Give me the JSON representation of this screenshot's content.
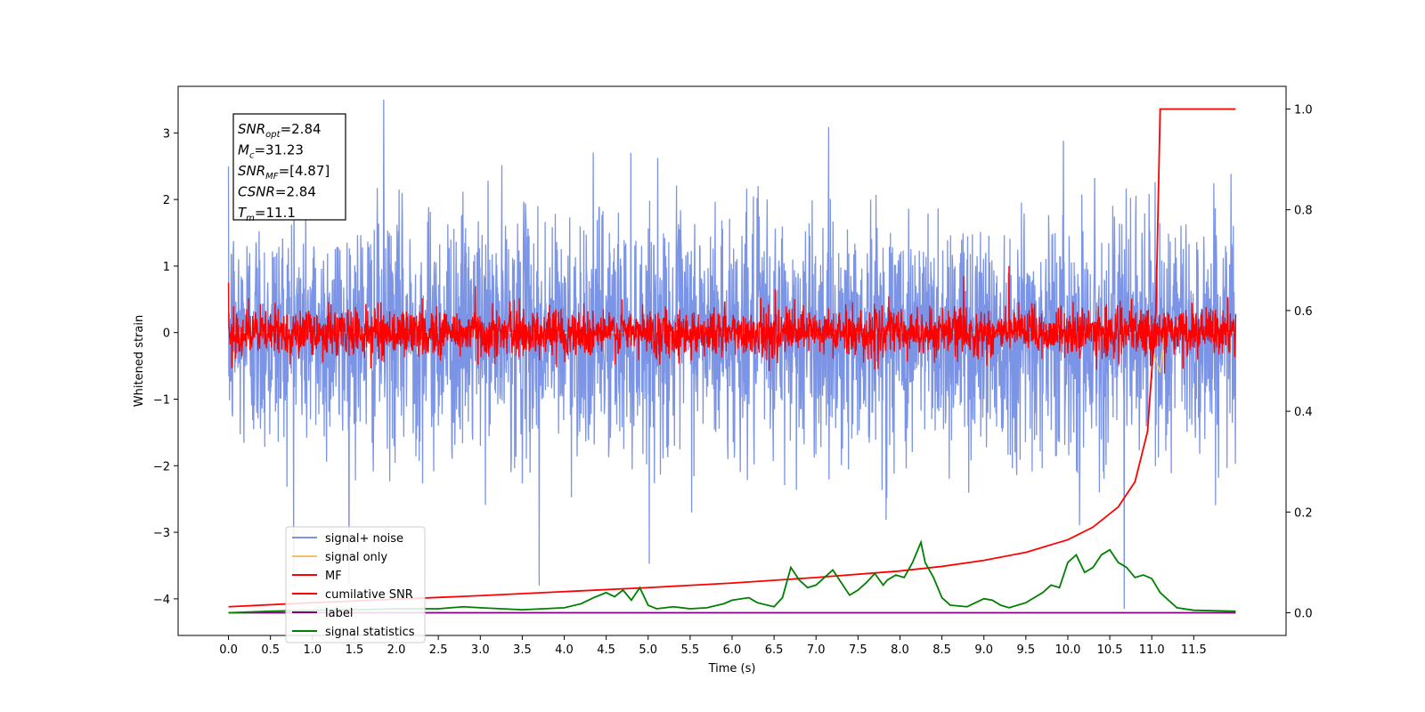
{
  "chart_data": {
    "type": "line",
    "title": "",
    "xlabel": "Time (s)",
    "ylabel": "Whitened strain",
    "xlim": [
      -0.6,
      12.6
    ],
    "ylim": [
      -4.55,
      3.7
    ],
    "y2lim": [
      -0.045,
      1.045
    ],
    "xticks": [
      "0.0",
      "0.5",
      "1.0",
      "1.5",
      "2.0",
      "2.5",
      "3.0",
      "3.5",
      "4.0",
      "4.5",
      "5.0",
      "5.5",
      "6.0",
      "6.5",
      "7.0",
      "7.5",
      "8.0",
      "8.5",
      "9.0",
      "9.5",
      "10.0",
      "10.5",
      "11.0",
      "11.5"
    ],
    "yticks": [
      "3",
      "2",
      "1",
      "0",
      "−1",
      "−2",
      "−3",
      "−4"
    ],
    "y2ticks": [
      "1.0",
      "0.8",
      "0.6",
      "0.4",
      "0.2",
      "0.0"
    ],
    "grid": false,
    "legend_position": "lower-left",
    "info_box": {
      "lines": [
        {
          "sym": "SNR",
          "sub": "opt",
          "val": "=2.84"
        },
        {
          "sym": "M",
          "sub": "c",
          "val": "=31.23"
        },
        {
          "sym": "SNR",
          "sub": "MF",
          "val": "=[4.87]"
        },
        {
          "sym": "CSNR",
          "sub": "",
          "val": "=2.84"
        },
        {
          "sym": "T",
          "sub": "m",
          "val": "=11.1"
        }
      ]
    },
    "series": [
      {
        "name": "signal+ noise",
        "color": "#7b94e6",
        "axis": "left",
        "description_stats": {
          "mean": 0.0,
          "std": 0.9,
          "x_range": [
            0.0,
            12.0
          ],
          "extremes": [
            [
              0.78,
              2.8
            ],
            [
              1.85,
              3.5
            ],
            [
              3.7,
              -3.8
            ],
            [
              10.67,
              -4.15
            ]
          ]
        }
      },
      {
        "name": "signal only",
        "color": "#f5c36b",
        "axis": "left",
        "values_note": "near zero, chirp near 11.1",
        "x": [
          0.0,
          10.8,
          11.0,
          11.1,
          11.15,
          12.0
        ],
        "y": [
          0.0,
          0.0,
          -0.25,
          -0.6,
          0.0,
          0.0
        ]
      },
      {
        "name": "MF",
        "color": "#ff0000",
        "axis": "left",
        "description_stats": {
          "mean": 0.0,
          "std": 0.18,
          "x_range": [
            0.0,
            12.0
          ],
          "extremes": [
            [
              0.0,
              0.75
            ],
            [
              2.94,
              0.7
            ],
            [
              8.76,
              0.85
            ],
            [
              9.3,
              1.0
            ]
          ]
        }
      },
      {
        "name": "cumilative SNR",
        "color": "#ff0000",
        "axis": "right",
        "x": [
          0.0,
          1.0,
          2.0,
          3.0,
          4.0,
          5.0,
          6.0,
          7.0,
          8.0,
          8.5,
          9.0,
          9.5,
          10.0,
          10.3,
          10.6,
          10.8,
          10.95,
          11.05,
          11.1,
          12.0
        ],
        "y": [
          0.012,
          0.02,
          0.027,
          0.034,
          0.042,
          0.05,
          0.059,
          0.07,
          0.083,
          0.092,
          0.104,
          0.12,
          0.145,
          0.17,
          0.21,
          0.26,
          0.36,
          0.6,
          1.0,
          1.0
        ]
      },
      {
        "name": "label",
        "color": "#800080",
        "axis": "right",
        "x": [
          0.0,
          12.0
        ],
        "y": [
          0.0,
          0.0
        ]
      },
      {
        "name": "signal statistics",
        "color": "#008000",
        "axis": "right",
        "x": [
          0.0,
          0.5,
          1.0,
          1.5,
          2.0,
          2.5,
          2.8,
          3.0,
          3.5,
          4.0,
          4.2,
          4.35,
          4.5,
          4.6,
          4.7,
          4.8,
          4.9,
          5.0,
          5.1,
          5.3,
          5.5,
          5.7,
          5.9,
          6.0,
          6.2,
          6.3,
          6.5,
          6.6,
          6.7,
          6.8,
          6.9,
          7.0,
          7.1,
          7.2,
          7.3,
          7.4,
          7.5,
          7.6,
          7.7,
          7.8,
          7.85,
          7.95,
          8.05,
          8.15,
          8.25,
          8.3,
          8.4,
          8.5,
          8.6,
          8.8,
          9.0,
          9.1,
          9.2,
          9.3,
          9.5,
          9.7,
          9.8,
          9.9,
          10.0,
          10.1,
          10.2,
          10.3,
          10.4,
          10.5,
          10.6,
          10.7,
          10.8,
          10.9,
          11.0,
          11.1,
          11.3,
          11.5,
          12.0
        ],
        "y": [
          0.0,
          0.003,
          0.005,
          0.006,
          0.008,
          0.008,
          0.012,
          0.01,
          0.006,
          0.01,
          0.018,
          0.03,
          0.04,
          0.032,
          0.045,
          0.025,
          0.05,
          0.015,
          0.008,
          0.012,
          0.008,
          0.01,
          0.018,
          0.025,
          0.03,
          0.02,
          0.012,
          0.03,
          0.09,
          0.065,
          0.05,
          0.055,
          0.07,
          0.085,
          0.06,
          0.035,
          0.045,
          0.06,
          0.078,
          0.055,
          0.065,
          0.075,
          0.07,
          0.1,
          0.14,
          0.1,
          0.07,
          0.03,
          0.015,
          0.012,
          0.028,
          0.025,
          0.015,
          0.01,
          0.02,
          0.04,
          0.055,
          0.05,
          0.1,
          0.115,
          0.08,
          0.09,
          0.115,
          0.125,
          0.1,
          0.09,
          0.07,
          0.075,
          0.068,
          0.04,
          0.01,
          0.005,
          0.003
        ]
      }
    ]
  }
}
